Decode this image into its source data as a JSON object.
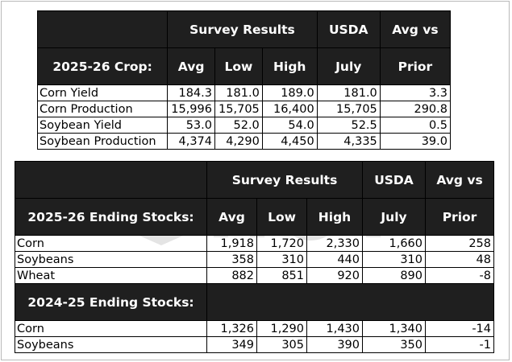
{
  "table1": {
    "header_top": {
      "survey": "Survey Results",
      "usda": "USDA",
      "avg_vs": "Avg vs"
    },
    "header_bottom": {
      "label": "2025-26 Crop:",
      "avg": "Avg",
      "low": "Low",
      "high": "High",
      "july": "July",
      "prior": "Prior"
    },
    "rows": [
      {
        "name": "Corn Yield",
        "avg": "184.3",
        "low": "181.0",
        "high": "189.0",
        "july": "181.0",
        "prior": "3.3"
      },
      {
        "name": "Corn Production",
        "avg": "15,996",
        "low": "15,705",
        "high": "16,400",
        "july": "15,705",
        "prior": "290.8"
      },
      {
        "name": "Soybean Yield",
        "avg": "53.0",
        "low": "52.0",
        "high": "54.0",
        "july": "52.5",
        "prior": "0.5"
      },
      {
        "name": "Soybean Production",
        "avg": "4,374",
        "low": "4,290",
        "high": "4,450",
        "july": "4,335",
        "prior": "39.0"
      }
    ]
  },
  "table2": {
    "header_top": {
      "survey": "Survey Results",
      "usda": "USDA",
      "avg_vs": "Avg vs"
    },
    "header_bottom": {
      "label": "2025-26 Ending Stocks:",
      "avg": "Avg",
      "low": "Low",
      "high": "High",
      "july": "July",
      "prior": "Prior"
    },
    "rows_2526": [
      {
        "name": "Corn",
        "avg": "1,918",
        "low": "1,720",
        "high": "2,330",
        "july": "1,660",
        "prior": "258"
      },
      {
        "name": "Soybeans",
        "avg": "358",
        "low": "310",
        "high": "440",
        "july": "310",
        "prior": "48"
      },
      {
        "name": "Wheat",
        "avg": "882",
        "low": "851",
        "high": "920",
        "july": "890",
        "prior": "-8"
      }
    ],
    "section_2425": "2024-25 Ending Stocks:",
    "rows_2425": [
      {
        "name": "Corn",
        "avg": "1,326",
        "low": "1,290",
        "high": "1,430",
        "july": "1,340",
        "prior": "-14"
      },
      {
        "name": "Soybeans",
        "avg": "349",
        "low": "305",
        "high": "390",
        "july": "350",
        "prior": "-1"
      }
    ]
  }
}
